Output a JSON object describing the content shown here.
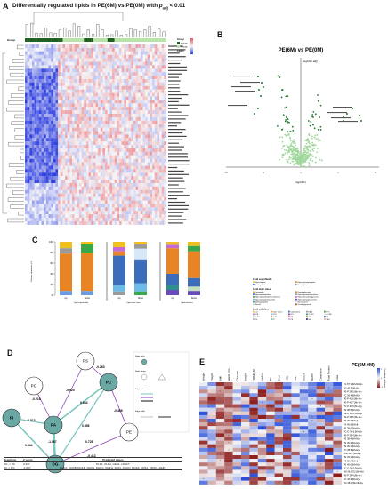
{
  "panels": {
    "A": {
      "letter": "A",
      "title_prefix": "Differentially regulated lipids in PE(6M) vs PE(0M) with ",
      "title_p": "p",
      "title_sub": "adj",
      "title_suffix": " < 0.01",
      "group_label": "Group",
      "legend_title": "Group",
      "legend_items": [
        "PE(0M)",
        "PE(6M)"
      ],
      "legend_extra": "Lipids",
      "colors": {
        "low": "#2b3de0",
        "mid": "#f7f7f7",
        "high": "#e4525a",
        "group_0m": "#1f5f1f",
        "group_6m": "#b7e3a6"
      }
    },
    "B": {
      "letter": "B",
      "title": "PE(6M) vs PE(0M)",
      "xlabel": "log2(FC)",
      "ylabel": "-log10(p.adj)",
      "xticks": [
        "-10",
        "-5",
        "0",
        "5",
        "10"
      ]
    },
    "C": {
      "letter": "C",
      "ylabel": "Relative abundance (%)",
      "yticks": [
        "0",
        "20",
        "40",
        "60",
        "80",
        "100"
      ],
      "group_labels": [
        "Lipid superfamily",
        "Lipid main class",
        "Lipid subclass"
      ],
      "bar_labels": [
        "Up",
        "Down",
        "Up",
        "Down",
        "Up",
        "Down"
      ],
      "legend": {
        "superfamily_title": "Lipid superfamily",
        "superfamily_items": [
          "Glycerolipids",
          "Glycerophospholipids",
          "Sphingolipids",
          "Sterol lipids"
        ],
        "mainclass_title": "Lipid main class",
        "mainclass_items": [
          "Ceramides",
          "Diradylglycerols",
          "Glycerophosphates",
          "Glycerophosphocholines",
          "Glycerophosphoethanolamines",
          "Glycerophosphoglycerols",
          "Glycerophosphoinositols",
          "Glycerophosphoserines",
          "Sphingomyelins",
          "Sterol esters",
          "Sterols",
          "Triradylglycerols"
        ],
        "subclass_title": "Lipid subclass",
        "subclass_items": [
          "Cer",
          "Chol. esters",
          "Cholesterol",
          "DAG",
          "LPC",
          "LPE",
          "LPG",
          "LPI",
          "O-LPC",
          "O-LPE",
          "O-PC",
          "O-PE",
          "PA",
          "PC",
          "PE",
          "PG",
          "PI",
          "PS",
          "SM",
          "TAG"
        ]
      }
    },
    "D": {
      "letter": "D",
      "nodes": [
        "PS",
        "PG",
        "PC",
        "PI",
        "PA",
        "PE",
        "DG"
      ],
      "edge_labels": [
        "-0.263",
        "-0.218",
        "-0.924",
        "0.634",
        "-0.408",
        "-0.813",
        "-1.067",
        "0.456",
        "0.728",
        "-0.412",
        "0.644"
      ],
      "legend_lines": [
        "Node color",
        "Node shape",
        "Edge color",
        "Edge width"
      ],
      "table_headers": [
        "Reactions",
        "Z score",
        "Predicted genes"
      ],
      "table_rows": [
        [
          "DG -> PA",
          "3.347",
          "PLD1, PLD2, CEH1, LDHFT"
        ],
        [
          "PA -> DG",
          "-1.067",
          "DGKA, DGKB, DGKD, DGKE, DGKG, DGKH, DGKI, DGKQ, DGKZ, CDS1, CDS2, LDHFT"
        ]
      ]
    },
    "E": {
      "letter": "E",
      "title": "PE(6M-0M)",
      "columns": [
        "Weight",
        "Height",
        "BMI",
        "Waist Circ.",
        "Glucose",
        "Insulin",
        "HOMA-IR",
        "HbA1c",
        "TG",
        "Chol",
        "HDL",
        "LDL",
        "SGOT",
        "SGPT",
        "Creatinine",
        "Total Protein",
        "Urea"
      ],
      "rows": [
        "TG 57:1 [M+NH4]+",
        "PG 40:9 [M-H]-",
        "PE-P 36:5 [M+H]+",
        "PC 36:4 [M+H]+",
        "PE-P 40:6 [M+H]+",
        "PE-P 40:7 [M+H]+",
        "PC-P 40:6 [M+H]+",
        "PE 38:5 [M+H]+",
        "PE-O 38:6 [M+H]+",
        "PE-P 38:6 [M+H]+",
        "PS 36:2 [M-H]-",
        "PS 40:6 [M-H]-",
        "PE 38:6 [M+H]+",
        "PC-O 36:5 [M+H]+",
        "PE-P 38:4 [M+H]+",
        "PE 38:4 [M+H]+",
        "PE 36:2 [M+H]+",
        "PE 36:1 [M+H]+",
        "PC 38:5 [M+H]+",
        "LPE 18:2 [M+H]+",
        "PE 34:1 [M+H]+",
        "PS 38:4 [M-H]-",
        "PE 40:6 [M+H]+",
        "PC-O 38:5 [M+H]+",
        "SM 36:1;O2 [M+H]+",
        "PE-P 36:4 [M+H]+",
        "PC 40:6 [M+H]+",
        "DG 38:4 [M+NH4]+"
      ],
      "scale_labels": [
        "1",
        "0",
        "-1"
      ],
      "scale_title": "Correlation coefficient"
    }
  }
}
